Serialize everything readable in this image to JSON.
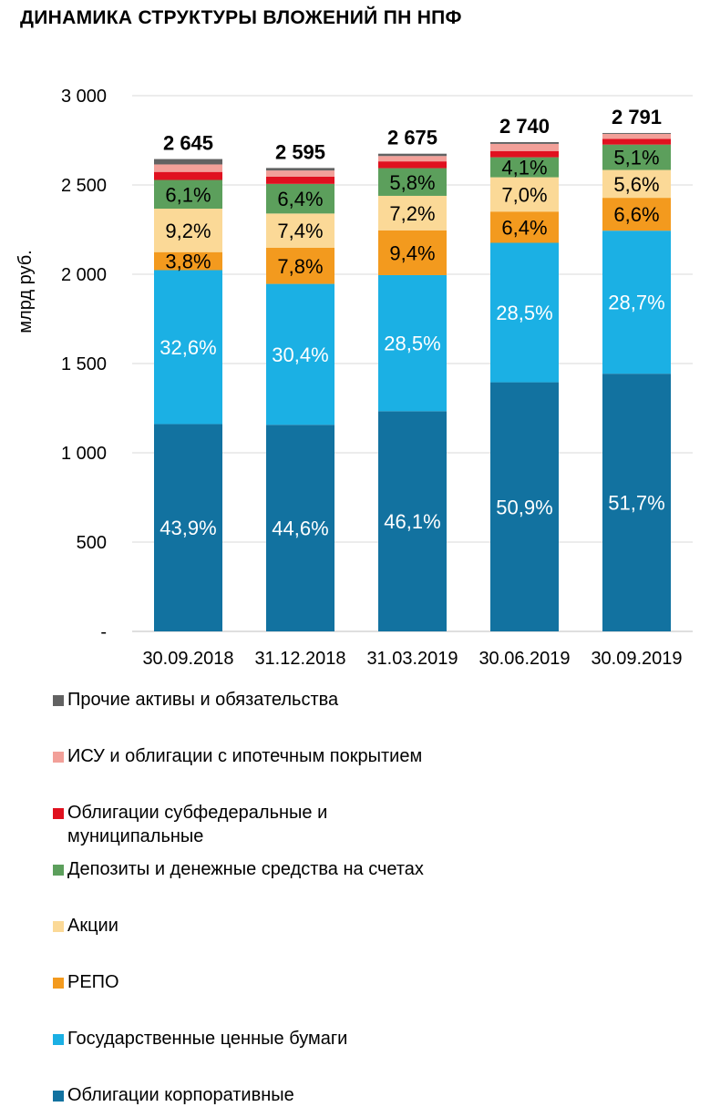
{
  "title": "ДИНАМИКА СТРУКТУРЫ ВЛОЖЕНИЙ ПН НПФ",
  "chart_data": {
    "type": "bar",
    "stacked": true,
    "ylabel": "млрд руб.",
    "ylim": [
      0,
      3000
    ],
    "yticks": [
      0,
      500,
      1000,
      1500,
      2000,
      2500,
      3000
    ],
    "ytick_labels": [
      "-",
      "500",
      "1 000",
      "1 500",
      "2 000",
      "2 500",
      "3 000"
    ],
    "categories": [
      "30.09.2018",
      "31.12.2018",
      "31.03.2019",
      "30.06.2019",
      "30.09.2019"
    ],
    "totals": [
      2645,
      2595,
      2675,
      2740,
      2791
    ],
    "total_labels": [
      "2 645",
      "2 595",
      "2 675",
      "2 740",
      "2 791"
    ],
    "series": [
      {
        "name": "Облигации корпоративные",
        "color": "#1272a0",
        "values": [
          1161,
          1157,
          1233,
          1395,
          1443
        ],
        "labels": [
          "43,9%",
          "44,6%",
          "46,1%",
          "50,9%",
          "51,7%"
        ]
      },
      {
        "name": "Государственные ценные бумаги",
        "color": "#1bb0e4",
        "values": [
          862,
          789,
          762,
          781,
          801
        ],
        "labels": [
          "32,6%",
          "30,4%",
          "28,5%",
          "28,5%",
          "28,7%"
        ]
      },
      {
        "name": "РЕПО",
        "color": "#f39a1e",
        "values": [
          101,
          202,
          251,
          175,
          184
        ],
        "labels": [
          "3,8%",
          "7,8%",
          "9,4%",
          "6,4%",
          "6,6%"
        ]
      },
      {
        "name": "Акции",
        "color": "#fbd997",
        "values": [
          243,
          192,
          193,
          192,
          156
        ],
        "labels": [
          "9,2%",
          "7,4%",
          "7,2%",
          "7,0%",
          "5,6%"
        ]
      },
      {
        "name": "Депозиты и денежные средства на счетах",
        "color": "#5c9f5c",
        "values": [
          161,
          166,
          155,
          112,
          142
        ],
        "labels": [
          "6,1%",
          "6,4%",
          "5,8%",
          "4,1%",
          "5,1%"
        ]
      },
      {
        "name": "Облигации субфедеральные и муниципальные",
        "color": "#e0111f",
        "values": [
          45,
          40,
          38,
          35,
          32
        ],
        "labels": [
          "",
          "",
          "",
          "",
          ""
        ]
      },
      {
        "name": "ИСУ и облигации с ипотечным покрытием",
        "color": "#f2a099",
        "values": [
          42,
          35,
          30,
          40,
          28
        ],
        "labels": [
          "",
          "",
          "",
          "",
          ""
        ]
      },
      {
        "name": "Прочие активы и обязательства",
        "color": "#626262",
        "values": [
          30,
          14,
          13,
          10,
          5
        ],
        "labels": [
          "",
          "",
          "",
          "",
          ""
        ]
      }
    ],
    "label_colors": [
      "#ffffff",
      "#ffffff",
      "#000000",
      "#000000",
      "#000000"
    ],
    "legend_position": "bottom",
    "grid": true
  },
  "legend": [
    {
      "label": "Прочие активы и обязательства",
      "color": "#626262"
    },
    {
      "label": "ИСУ и облигации с ипотечным покрытием",
      "color": "#f2a099"
    },
    {
      "label": "Облигации субфедеральные и муниципальные",
      "color": "#e0111f"
    },
    {
      "label": "Депозиты и денежные средства на счетах",
      "color": "#5c9f5c"
    },
    {
      "label": "Акции",
      "color": "#fbd997"
    },
    {
      "label": "РЕПО",
      "color": "#f39a1e"
    },
    {
      "label": "Государственные ценные бумаги",
      "color": "#1bb0e4"
    },
    {
      "label": "Облигации корпоративные",
      "color": "#1272a0"
    }
  ]
}
